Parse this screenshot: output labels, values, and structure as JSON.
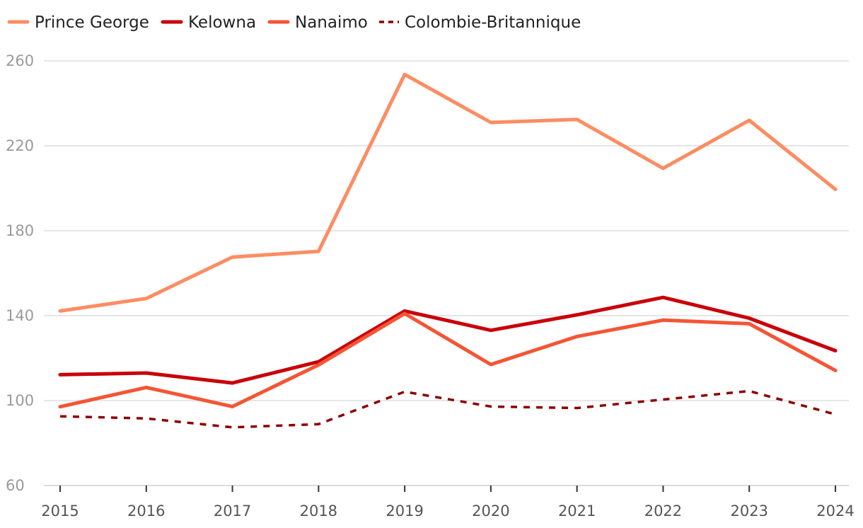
{
  "chart_data": {
    "type": "line",
    "title": "",
    "xlabel": "",
    "ylabel": "",
    "x": [
      "2015",
      "2016",
      "2017",
      "2018",
      "2019",
      "2020",
      "2021",
      "2022",
      "2023",
      "2024"
    ],
    "ylim": [
      60,
      260
    ],
    "yticks": [
      "60",
      "100",
      "140",
      "180",
      "220",
      "260"
    ],
    "grid": "horizontal",
    "legend_position": "top-left",
    "series": [
      {
        "name": "Prince George",
        "color": "#fc8d62",
        "style": "solid",
        "values": [
          142.2,
          148.1,
          167.6,
          170.3,
          253.6,
          231.0,
          232.4,
          209.4,
          232.0,
          199.5
        ]
      },
      {
        "name": "Kelowna",
        "color": "#c8000a",
        "style": "solid",
        "values": [
          112.2,
          113.0,
          108.3,
          118.3,
          142.2,
          133.1,
          140.4,
          148.6,
          138.8,
          123.5
        ]
      },
      {
        "name": "Nanaimo",
        "color": "#f45535",
        "style": "solid",
        "values": [
          97.1,
          106.2,
          97.2,
          116.8,
          141.0,
          117.0,
          130.2,
          137.9,
          136.2,
          114.2
        ]
      },
      {
        "name": "Colombie-Britannique",
        "color": "#8c0000",
        "style": "dashed",
        "values": [
          92.6,
          91.6,
          87.4,
          88.9,
          104.2,
          97.2,
          96.5,
          100.5,
          104.5,
          93.5
        ]
      }
    ]
  }
}
